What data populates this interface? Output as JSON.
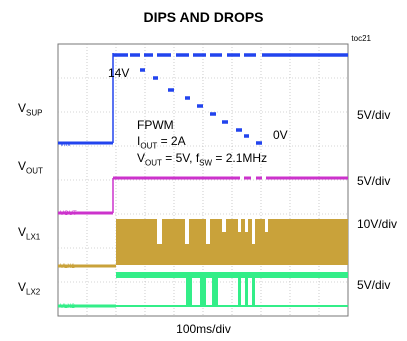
{
  "chart_data": {
    "type": "line",
    "title": "DIPS AND DROPS",
    "figure_id": "toc21",
    "xlabel": "100ms/div",
    "x_divisions": 10,
    "y_divisions": 8,
    "grid": true,
    "channels": [
      {
        "name": "VSUP",
        "label_main": "V",
        "label_sub": "SUP",
        "scale": "5V/div",
        "color": "#2244ee",
        "marker": "VIN",
        "description": "Stepped input supply dips from 14V down to 0V and back to 14V"
      },
      {
        "name": "VOUT",
        "label_main": "V",
        "label_sub": "OUT",
        "scale": "5V/div",
        "color": "#cc33cc",
        "marker": "VOUT"
      },
      {
        "name": "VLX1",
        "label_main": "V",
        "label_sub": "LX1",
        "scale": "10V/div",
        "color": "#c9a23a",
        "marker": "VLX1"
      },
      {
        "name": "VLX2",
        "label_main": "V",
        "label_sub": "LX2",
        "scale": "5V/div",
        "color": "#33ee88",
        "marker": "VLX2"
      }
    ],
    "annotations": {
      "start_voltage": "14V",
      "end_voltage": "0V",
      "mode": "FPWM",
      "iout_main": "I",
      "iout_sub": "OUT",
      "iout_val": " = 2A",
      "vout_main": "V",
      "vout_sub": "OUT",
      "vout_val": " = 5V, f",
      "fsw_sub": "SW",
      "fsw_val": " = 2.1MHz"
    }
  }
}
